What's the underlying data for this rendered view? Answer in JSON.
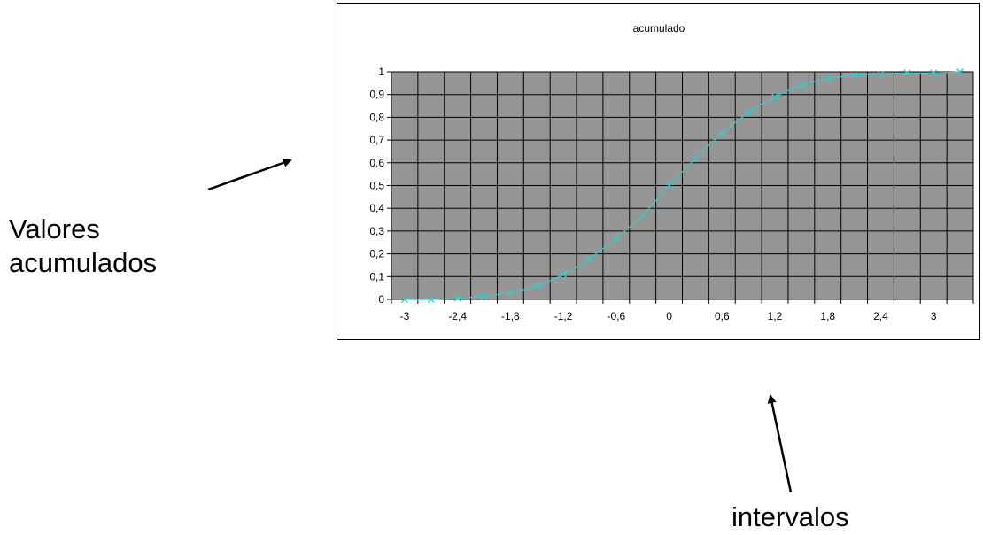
{
  "annotations": {
    "left_line1": "Valores",
    "left_line2": "acumulados",
    "bottom": "intervalos"
  },
  "chart_data": {
    "type": "line",
    "title": "acumulado",
    "xlabel": "",
    "ylabel": "",
    "ylim": [
      0,
      1
    ],
    "y_ticks": [
      "0",
      "0,1",
      "0,2",
      "0,3",
      "0,4",
      "0,5",
      "0,6",
      "0,7",
      "0,8",
      "0,9",
      "1"
    ],
    "x_tick_labels": [
      "-3",
      "-2,4",
      "-1,8",
      "-1,2",
      "-0,6",
      "0",
      "0,6",
      "1,2",
      "1,8",
      "2,4",
      "3"
    ],
    "grid": true,
    "plot_background": "#969696",
    "series": [
      {
        "color": "#33cccc",
        "marker": "x",
        "x": [
          -3.0,
          -2.7,
          -2.4,
          -2.1,
          -1.8,
          -1.5,
          -1.2,
          -0.9,
          -0.6,
          -0.3,
          0.0,
          0.3,
          0.6,
          0.9,
          1.2,
          1.5,
          1.8,
          2.1,
          2.4,
          2.7,
          3.0,
          3.3
        ],
        "values": [
          0.0,
          0.0,
          0.005,
          0.015,
          0.03,
          0.06,
          0.11,
          0.18,
          0.27,
          0.37,
          0.5,
          0.62,
          0.73,
          0.82,
          0.89,
          0.94,
          0.97,
          0.985,
          0.99,
          0.995,
          0.995,
          1.0
        ]
      }
    ]
  }
}
